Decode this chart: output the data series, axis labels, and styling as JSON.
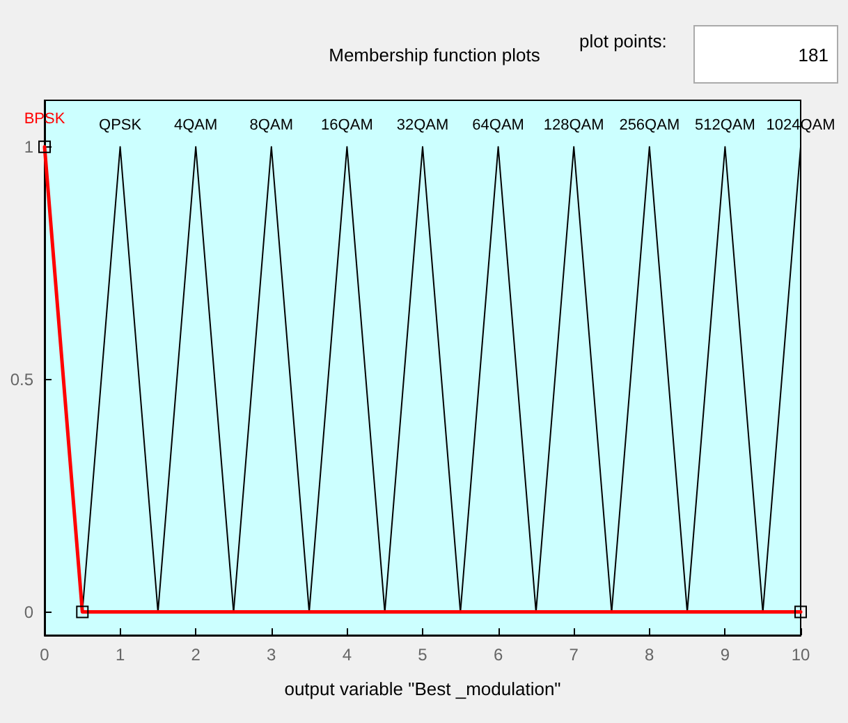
{
  "chart_data": {
    "type": "line",
    "title": "Membership function plots",
    "xlabel": "output variable \"Best _modulation\"",
    "annotations": [
      "plot points:",
      "181"
    ],
    "xlim": [
      0,
      10
    ],
    "xticks": [
      0,
      1,
      2,
      3,
      4,
      5,
      6,
      7,
      8,
      9,
      10
    ],
    "ylim": [
      -0.05,
      1.1
    ],
    "yticks": [
      0,
      0.5,
      1
    ],
    "grid": false,
    "legend": false,
    "series": [
      {
        "name": "BPSK",
        "color": "#ff0000",
        "marker": "square",
        "x": [
          0,
          0.5,
          10
        ],
        "values": [
          1,
          0,
          0
        ]
      },
      {
        "name": "QPSK",
        "color": "#000000",
        "marker": "none",
        "x": [
          0.5,
          1,
          1.5
        ],
        "values": [
          0,
          1,
          0
        ]
      },
      {
        "name": "4QAM",
        "color": "#000000",
        "marker": "none",
        "x": [
          1.5,
          2,
          2.5
        ],
        "values": [
          0,
          1,
          0
        ]
      },
      {
        "name": "8QAM",
        "color": "#000000",
        "marker": "none",
        "x": [
          2.5,
          3,
          3.5
        ],
        "values": [
          0,
          1,
          0
        ]
      },
      {
        "name": "16QAM",
        "color": "#000000",
        "marker": "none",
        "x": [
          3.5,
          4,
          4.5
        ],
        "values": [
          0,
          1,
          0
        ]
      },
      {
        "name": "32QAM",
        "color": "#000000",
        "marker": "none",
        "x": [
          4.5,
          5,
          5.5
        ],
        "values": [
          0,
          1,
          0
        ]
      },
      {
        "name": "64QAM",
        "color": "#000000",
        "marker": "none",
        "x": [
          5.5,
          6,
          6.5
        ],
        "values": [
          0,
          1,
          0
        ]
      },
      {
        "name": "128QAM",
        "color": "#000000",
        "marker": "none",
        "x": [
          6.5,
          7,
          7.5
        ],
        "values": [
          0,
          1,
          0
        ]
      },
      {
        "name": "256QAM",
        "color": "#000000",
        "marker": "none",
        "x": [
          7.5,
          8,
          8.5
        ],
        "values": [
          0,
          1,
          0
        ]
      },
      {
        "name": "512QAM",
        "color": "#000000",
        "marker": "none",
        "x": [
          8.5,
          9,
          9.5
        ],
        "values": [
          0,
          1,
          0
        ]
      },
      {
        "name": "1024QAM",
        "color": "#000000",
        "marker": "none",
        "x": [
          9.5,
          10
        ],
        "values": [
          0,
          1
        ]
      }
    ]
  }
}
